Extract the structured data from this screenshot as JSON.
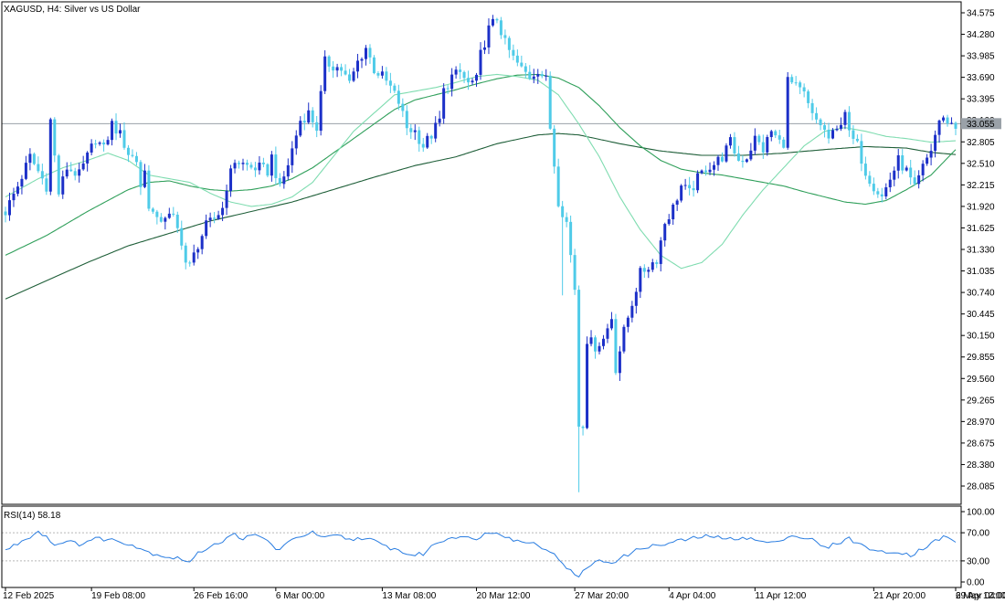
{
  "chart_data": [
    {
      "type": "candlestick",
      "symbol": "XAGUSD",
      "timeframe": "H4",
      "description": "Silver vs US Dollar",
      "current_price": "33.055",
      "y_ticks": [
        "34.575",
        "34.280",
        "33.985",
        "33.690",
        "33.395",
        "33.100",
        "32.805",
        "32.510",
        "32.215",
        "31.920",
        "31.625",
        "31.330",
        "31.035",
        "30.740",
        "30.445",
        "30.150",
        "29.855",
        "29.560",
        "29.265",
        "28.970",
        "28.675",
        "28.380",
        "28.085"
      ],
      "ylim": [
        27.85,
        34.65
      ],
      "x_ticks": [
        "12 Feb 2025",
        "19 Feb 08:00",
        "26 Feb 16:00",
        "6 Mar 00:00",
        "13 Mar 08:00",
        "20 Mar 12:00",
        "27 Mar 20:00",
        "4 Apr 04:00",
        "11 Apr 12:00",
        "21 Apr 20:00",
        "29 Apr 04:00",
        "6 May 12:00"
      ],
      "close_path": [
        [
          0,
          31.85
        ],
        [
          3,
          32.2
        ],
        [
          6,
          32.6
        ],
        [
          8,
          32.4
        ],
        [
          10,
          32.2
        ],
        [
          11,
          33.1
        ],
        [
          13,
          32.1
        ],
        [
          15,
          32.45
        ],
        [
          18,
          32.35
        ],
        [
          20,
          32.6
        ],
        [
          22,
          32.85
        ],
        [
          24,
          32.7
        ],
        [
          26,
          33.05
        ],
        [
          28,
          32.9
        ],
        [
          30,
          32.65
        ],
        [
          32,
          32.55
        ],
        [
          33,
          32.2
        ],
        [
          34,
          32.4
        ],
        [
          35,
          31.95
        ],
        [
          37,
          31.7
        ],
        [
          39,
          31.8
        ],
        [
          41,
          31.75
        ],
        [
          43,
          31.45
        ],
        [
          44,
          31.15
        ],
        [
          45,
          31.1
        ],
        [
          47,
          31.4
        ],
        [
          49,
          31.65
        ],
        [
          51,
          31.75
        ],
        [
          53,
          31.9
        ],
        [
          54,
          32.2
        ],
        [
          56,
          32.55
        ],
        [
          58,
          32.5
        ],
        [
          60,
          32.45
        ],
        [
          62,
          32.45
        ],
        [
          64,
          32.4
        ],
        [
          65,
          32.6
        ],
        [
          67,
          32.15
        ],
        [
          69,
          32.5
        ],
        [
          70,
          32.7
        ],
        [
          72,
          33.1
        ],
        [
          74,
          33.2
        ],
        [
          76,
          33.0
        ],
        [
          78,
          33.9
        ],
        [
          80,
          33.85
        ],
        [
          82,
          33.8
        ],
        [
          84,
          33.6
        ],
        [
          86,
          33.9
        ],
        [
          88,
          34.1
        ],
        [
          90,
          33.8
        ],
        [
          92,
          33.7
        ],
        [
          94,
          33.55
        ],
        [
          96,
          33.35
        ],
        [
          98,
          33.0
        ],
        [
          100,
          32.95
        ],
        [
          102,
          32.75
        ],
        [
          104,
          32.9
        ],
        [
          106,
          33.1
        ],
        [
          107,
          33.5
        ],
        [
          109,
          33.7
        ],
        [
          111,
          33.75
        ],
        [
          113,
          33.6
        ],
        [
          115,
          33.65
        ],
        [
          116,
          34.0
        ],
        [
          118,
          34.35
        ],
        [
          120,
          34.5
        ],
        [
          122,
          34.15
        ],
        [
          124,
          33.95
        ],
        [
          126,
          33.8
        ],
        [
          128,
          33.7
        ],
        [
          130,
          33.8
        ],
        [
          132,
          33.65
        ],
        [
          133,
          33.0
        ],
        [
          135,
          32.0
        ],
        [
          137,
          31.7
        ],
        [
          139,
          30.8
        ],
        [
          140,
          29.6
        ],
        [
          141,
          28.95
        ],
        [
          142,
          30.1
        ],
        [
          144,
          30.0
        ],
        [
          146,
          30.1
        ],
        [
          148,
          30.4
        ],
        [
          149,
          29.7
        ],
        [
          151,
          30.2
        ],
        [
          153,
          30.6
        ],
        [
          155,
          31.0
        ],
        [
          157,
          31.1
        ],
        [
          159,
          31.2
        ],
        [
          161,
          31.7
        ],
        [
          163,
          31.9
        ],
        [
          165,
          32.2
        ],
        [
          167,
          32.1
        ],
        [
          169,
          32.3
        ],
        [
          171,
          32.45
        ],
        [
          173,
          32.5
        ],
        [
          175,
          32.6
        ],
        [
          177,
          32.8
        ],
        [
          179,
          32.55
        ],
        [
          181,
          32.6
        ],
        [
          183,
          32.85
        ],
        [
          185,
          32.7
        ],
        [
          187,
          32.95
        ],
        [
          189,
          32.8
        ],
        [
          190,
          32.8
        ],
        [
          191,
          33.65
        ],
        [
          193,
          33.55
        ],
        [
          195,
          33.45
        ],
        [
          197,
          33.15
        ],
        [
          199,
          33.05
        ],
        [
          201,
          32.85
        ],
        [
          203,
          32.95
        ],
        [
          205,
          33.25
        ],
        [
          206,
          32.9
        ],
        [
          208,
          32.75
        ],
        [
          210,
          32.4
        ],
        [
          212,
          32.2
        ],
        [
          214,
          32.05
        ],
        [
          216,
          32.3
        ],
        [
          218,
          32.55
        ],
        [
          220,
          32.4
        ],
        [
          222,
          32.15
        ],
        [
          224,
          32.45
        ],
        [
          226,
          32.7
        ],
        [
          228,
          33.1
        ],
        [
          230,
          33.1
        ],
        [
          232,
          33.0
        ]
      ],
      "ma_fast": [
        [
          0,
          32.05
        ],
        [
          8,
          32.3
        ],
        [
          14,
          32.45
        ],
        [
          20,
          32.55
        ],
        [
          25,
          32.65
        ],
        [
          30,
          32.55
        ],
        [
          35,
          32.35
        ],
        [
          40,
          32.3
        ],
        [
          45,
          32.25
        ],
        [
          50,
          32.1
        ],
        [
          55,
          31.98
        ],
        [
          60,
          31.92
        ],
        [
          65,
          31.95
        ],
        [
          70,
          32.05
        ],
        [
          75,
          32.25
        ],
        [
          80,
          32.6
        ],
        [
          85,
          32.95
        ],
        [
          90,
          33.2
        ],
        [
          95,
          33.45
        ],
        [
          100,
          33.5
        ],
        [
          105,
          33.55
        ],
        [
          110,
          33.62
        ],
        [
          115,
          33.7
        ],
        [
          120,
          33.73
        ],
        [
          125,
          33.7
        ],
        [
          130,
          33.65
        ],
        [
          135,
          33.45
        ],
        [
          140,
          33.05
        ],
        [
          145,
          32.6
        ],
        [
          150,
          32.05
        ],
        [
          155,
          31.6
        ],
        [
          160,
          31.25
        ],
        [
          165,
          31.07
        ],
        [
          170,
          31.15
        ],
        [
          175,
          31.4
        ],
        [
          180,
          31.8
        ],
        [
          185,
          32.15
        ],
        [
          190,
          32.45
        ],
        [
          195,
          32.75
        ],
        [
          200,
          32.95
        ],
        [
          205,
          33.0
        ],
        [
          210,
          32.95
        ],
        [
          215,
          32.88
        ],
        [
          220,
          32.85
        ],
        [
          226,
          32.8
        ],
        [
          232,
          32.82
        ]
      ],
      "ma_mid": [
        [
          0,
          31.25
        ],
        [
          10,
          31.52
        ],
        [
          20,
          31.85
        ],
        [
          30,
          32.15
        ],
        [
          35,
          32.25
        ],
        [
          40,
          32.27
        ],
        [
          45,
          32.2
        ],
        [
          50,
          32.15
        ],
        [
          55,
          32.13
        ],
        [
          60,
          32.15
        ],
        [
          65,
          32.2
        ],
        [
          70,
          32.3
        ],
        [
          75,
          32.45
        ],
        [
          80,
          32.65
        ],
        [
          85,
          32.85
        ],
        [
          90,
          33.05
        ],
        [
          95,
          33.25
        ],
        [
          100,
          33.38
        ],
        [
          105,
          33.45
        ],
        [
          110,
          33.52
        ],
        [
          115,
          33.6
        ],
        [
          120,
          33.67
        ],
        [
          125,
          33.72
        ],
        [
          130,
          33.73
        ],
        [
          135,
          33.68
        ],
        [
          140,
          33.55
        ],
        [
          145,
          33.3
        ],
        [
          150,
          33.0
        ],
        [
          155,
          32.75
        ],
        [
          160,
          32.55
        ],
        [
          165,
          32.43
        ],
        [
          170,
          32.38
        ],
        [
          175,
          32.35
        ],
        [
          180,
          32.3
        ],
        [
          185,
          32.25
        ],
        [
          190,
          32.2
        ],
        [
          195,
          32.12
        ],
        [
          200,
          32.05
        ],
        [
          205,
          31.98
        ],
        [
          210,
          31.95
        ],
        [
          215,
          32.0
        ],
        [
          220,
          32.15
        ],
        [
          226,
          32.35
        ],
        [
          232,
          32.7
        ]
      ],
      "ma_slow": [
        [
          0,
          30.65
        ],
        [
          10,
          30.9
        ],
        [
          20,
          31.15
        ],
        [
          30,
          31.38
        ],
        [
          40,
          31.55
        ],
        [
          50,
          31.72
        ],
        [
          60,
          31.85
        ],
        [
          70,
          31.98
        ],
        [
          80,
          32.15
        ],
        [
          90,
          32.32
        ],
        [
          100,
          32.48
        ],
        [
          110,
          32.6
        ],
        [
          120,
          32.78
        ],
        [
          130,
          32.9
        ],
        [
          135,
          32.92
        ],
        [
          140,
          32.9
        ],
        [
          150,
          32.78
        ],
        [
          160,
          32.68
        ],
        [
          170,
          32.62
        ],
        [
          180,
          32.62
        ],
        [
          190,
          32.65
        ],
        [
          200,
          32.7
        ],
        [
          210,
          32.74
        ],
        [
          220,
          32.72
        ],
        [
          226,
          32.66
        ],
        [
          232,
          32.63
        ]
      ]
    },
    {
      "type": "line",
      "name": "RSI(14)",
      "value_label": "58.18",
      "y_ticks": [
        "100.00",
        "70.00",
        "30.00",
        "0.00"
      ],
      "ylim": [
        0,
        100
      ],
      "levels": [
        70,
        30
      ],
      "path": [
        [
          0,
          45
        ],
        [
          4,
          58
        ],
        [
          8,
          72
        ],
        [
          10,
          65
        ],
        [
          12,
          52
        ],
        [
          14,
          58
        ],
        [
          18,
          54
        ],
        [
          22,
          62
        ],
        [
          26,
          60
        ],
        [
          30,
          55
        ],
        [
          33,
          48
        ],
        [
          35,
          42
        ],
        [
          38,
          38
        ],
        [
          40,
          35
        ],
        [
          43,
          33
        ],
        [
          45,
          28
        ],
        [
          47,
          40
        ],
        [
          50,
          52
        ],
        [
          53,
          58
        ],
        [
          56,
          68
        ],
        [
          58,
          62
        ],
        [
          61,
          66
        ],
        [
          64,
          60
        ],
        [
          66,
          45
        ],
        [
          69,
          55
        ],
        [
          72,
          66
        ],
        [
          75,
          70
        ],
        [
          78,
          62
        ],
        [
          81,
          66
        ],
        [
          84,
          60
        ],
        [
          87,
          63
        ],
        [
          90,
          58
        ],
        [
          93,
          50
        ],
        [
          96,
          45
        ],
        [
          99,
          38
        ],
        [
          102,
          40
        ],
        [
          105,
          55
        ],
        [
          108,
          62
        ],
        [
          111,
          66
        ],
        [
          114,
          60
        ],
        [
          117,
          68
        ],
        [
          120,
          72
        ],
        [
          122,
          66
        ],
        [
          124,
          60
        ],
        [
          126,
          56
        ],
        [
          128,
          58
        ],
        [
          130,
          52
        ],
        [
          132,
          48
        ],
        [
          134,
          38
        ],
        [
          136,
          28
        ],
        [
          138,
          15
        ],
        [
          140,
          6
        ],
        [
          142,
          22
        ],
        [
          145,
          30
        ],
        [
          148,
          28
        ],
        [
          150,
          33
        ],
        [
          153,
          42
        ],
        [
          156,
          50
        ],
        [
          160,
          52
        ],
        [
          164,
          58
        ],
        [
          168,
          62
        ],
        [
          172,
          66
        ],
        [
          176,
          60
        ],
        [
          180,
          64
        ],
        [
          184,
          58
        ],
        [
          188,
          55
        ],
        [
          191,
          66
        ],
        [
          194,
          64
        ],
        [
          197,
          60
        ],
        [
          200,
          48
        ],
        [
          203,
          55
        ],
        [
          206,
          62
        ],
        [
          209,
          52
        ],
        [
          212,
          46
        ],
        [
          215,
          40
        ],
        [
          218,
          44
        ],
        [
          221,
          38
        ],
        [
          224,
          48
        ],
        [
          227,
          58
        ],
        [
          229,
          64
        ],
        [
          230,
          62
        ],
        [
          232,
          58
        ]
      ]
    }
  ],
  "colors": {
    "bull": "#1c30c8",
    "bear": "#4fcbe8",
    "ma_fast": "#7fdcb0",
    "ma_mid": "#2f9f5a",
    "ma_slow": "#1e5e38",
    "rsi": "#2a7de1"
  }
}
